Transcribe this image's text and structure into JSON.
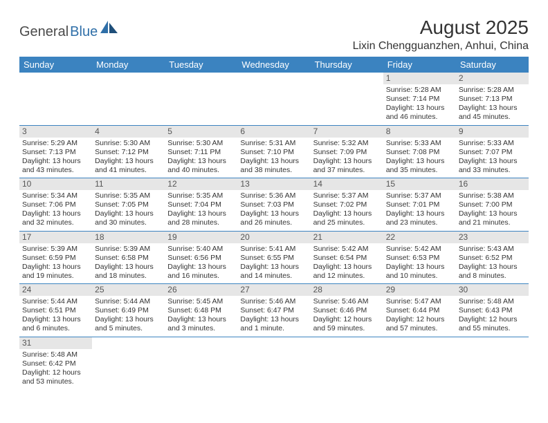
{
  "logo": {
    "part1": "General",
    "part2": "Blue"
  },
  "title": "August 2025",
  "location": "Lixin Chengguanzhen, Anhui, China",
  "colors": {
    "header_bg": "#3b83c0",
    "header_fg": "#ffffff",
    "daynum_bg": "#e6e6e6",
    "border": "#3b83c0",
    "logo_accent": "#2f6fa8"
  },
  "weekdays": [
    "Sunday",
    "Monday",
    "Tuesday",
    "Wednesday",
    "Thursday",
    "Friday",
    "Saturday"
  ],
  "weeks": [
    [
      {
        "empty": true
      },
      {
        "empty": true
      },
      {
        "empty": true
      },
      {
        "empty": true
      },
      {
        "empty": true
      },
      {
        "day": "1",
        "sunrise": "Sunrise: 5:28 AM",
        "sunset": "Sunset: 7:14 PM",
        "daylight1": "Daylight: 13 hours",
        "daylight2": "and 46 minutes."
      },
      {
        "day": "2",
        "sunrise": "Sunrise: 5:28 AM",
        "sunset": "Sunset: 7:13 PM",
        "daylight1": "Daylight: 13 hours",
        "daylight2": "and 45 minutes."
      }
    ],
    [
      {
        "day": "3",
        "sunrise": "Sunrise: 5:29 AM",
        "sunset": "Sunset: 7:13 PM",
        "daylight1": "Daylight: 13 hours",
        "daylight2": "and 43 minutes."
      },
      {
        "day": "4",
        "sunrise": "Sunrise: 5:30 AM",
        "sunset": "Sunset: 7:12 PM",
        "daylight1": "Daylight: 13 hours",
        "daylight2": "and 41 minutes."
      },
      {
        "day": "5",
        "sunrise": "Sunrise: 5:30 AM",
        "sunset": "Sunset: 7:11 PM",
        "daylight1": "Daylight: 13 hours",
        "daylight2": "and 40 minutes."
      },
      {
        "day": "6",
        "sunrise": "Sunrise: 5:31 AM",
        "sunset": "Sunset: 7:10 PM",
        "daylight1": "Daylight: 13 hours",
        "daylight2": "and 38 minutes."
      },
      {
        "day": "7",
        "sunrise": "Sunrise: 5:32 AM",
        "sunset": "Sunset: 7:09 PM",
        "daylight1": "Daylight: 13 hours",
        "daylight2": "and 37 minutes."
      },
      {
        "day": "8",
        "sunrise": "Sunrise: 5:33 AM",
        "sunset": "Sunset: 7:08 PM",
        "daylight1": "Daylight: 13 hours",
        "daylight2": "and 35 minutes."
      },
      {
        "day": "9",
        "sunrise": "Sunrise: 5:33 AM",
        "sunset": "Sunset: 7:07 PM",
        "daylight1": "Daylight: 13 hours",
        "daylight2": "and 33 minutes."
      }
    ],
    [
      {
        "day": "10",
        "sunrise": "Sunrise: 5:34 AM",
        "sunset": "Sunset: 7:06 PM",
        "daylight1": "Daylight: 13 hours",
        "daylight2": "and 32 minutes."
      },
      {
        "day": "11",
        "sunrise": "Sunrise: 5:35 AM",
        "sunset": "Sunset: 7:05 PM",
        "daylight1": "Daylight: 13 hours",
        "daylight2": "and 30 minutes."
      },
      {
        "day": "12",
        "sunrise": "Sunrise: 5:35 AM",
        "sunset": "Sunset: 7:04 PM",
        "daylight1": "Daylight: 13 hours",
        "daylight2": "and 28 minutes."
      },
      {
        "day": "13",
        "sunrise": "Sunrise: 5:36 AM",
        "sunset": "Sunset: 7:03 PM",
        "daylight1": "Daylight: 13 hours",
        "daylight2": "and 26 minutes."
      },
      {
        "day": "14",
        "sunrise": "Sunrise: 5:37 AM",
        "sunset": "Sunset: 7:02 PM",
        "daylight1": "Daylight: 13 hours",
        "daylight2": "and 25 minutes."
      },
      {
        "day": "15",
        "sunrise": "Sunrise: 5:37 AM",
        "sunset": "Sunset: 7:01 PM",
        "daylight1": "Daylight: 13 hours",
        "daylight2": "and 23 minutes."
      },
      {
        "day": "16",
        "sunrise": "Sunrise: 5:38 AM",
        "sunset": "Sunset: 7:00 PM",
        "daylight1": "Daylight: 13 hours",
        "daylight2": "and 21 minutes."
      }
    ],
    [
      {
        "day": "17",
        "sunrise": "Sunrise: 5:39 AM",
        "sunset": "Sunset: 6:59 PM",
        "daylight1": "Daylight: 13 hours",
        "daylight2": "and 19 minutes."
      },
      {
        "day": "18",
        "sunrise": "Sunrise: 5:39 AM",
        "sunset": "Sunset: 6:58 PM",
        "daylight1": "Daylight: 13 hours",
        "daylight2": "and 18 minutes."
      },
      {
        "day": "19",
        "sunrise": "Sunrise: 5:40 AM",
        "sunset": "Sunset: 6:56 PM",
        "daylight1": "Daylight: 13 hours",
        "daylight2": "and 16 minutes."
      },
      {
        "day": "20",
        "sunrise": "Sunrise: 5:41 AM",
        "sunset": "Sunset: 6:55 PM",
        "daylight1": "Daylight: 13 hours",
        "daylight2": "and 14 minutes."
      },
      {
        "day": "21",
        "sunrise": "Sunrise: 5:42 AM",
        "sunset": "Sunset: 6:54 PM",
        "daylight1": "Daylight: 13 hours",
        "daylight2": "and 12 minutes."
      },
      {
        "day": "22",
        "sunrise": "Sunrise: 5:42 AM",
        "sunset": "Sunset: 6:53 PM",
        "daylight1": "Daylight: 13 hours",
        "daylight2": "and 10 minutes."
      },
      {
        "day": "23",
        "sunrise": "Sunrise: 5:43 AM",
        "sunset": "Sunset: 6:52 PM",
        "daylight1": "Daylight: 13 hours",
        "daylight2": "and 8 minutes."
      }
    ],
    [
      {
        "day": "24",
        "sunrise": "Sunrise: 5:44 AM",
        "sunset": "Sunset: 6:51 PM",
        "daylight1": "Daylight: 13 hours",
        "daylight2": "and 6 minutes."
      },
      {
        "day": "25",
        "sunrise": "Sunrise: 5:44 AM",
        "sunset": "Sunset: 6:49 PM",
        "daylight1": "Daylight: 13 hours",
        "daylight2": "and 5 minutes."
      },
      {
        "day": "26",
        "sunrise": "Sunrise: 5:45 AM",
        "sunset": "Sunset: 6:48 PM",
        "daylight1": "Daylight: 13 hours",
        "daylight2": "and 3 minutes."
      },
      {
        "day": "27",
        "sunrise": "Sunrise: 5:46 AM",
        "sunset": "Sunset: 6:47 PM",
        "daylight1": "Daylight: 13 hours",
        "daylight2": "and 1 minute."
      },
      {
        "day": "28",
        "sunrise": "Sunrise: 5:46 AM",
        "sunset": "Sunset: 6:46 PM",
        "daylight1": "Daylight: 12 hours",
        "daylight2": "and 59 minutes."
      },
      {
        "day": "29",
        "sunrise": "Sunrise: 5:47 AM",
        "sunset": "Sunset: 6:44 PM",
        "daylight1": "Daylight: 12 hours",
        "daylight2": "and 57 minutes."
      },
      {
        "day": "30",
        "sunrise": "Sunrise: 5:48 AM",
        "sunset": "Sunset: 6:43 PM",
        "daylight1": "Daylight: 12 hours",
        "daylight2": "and 55 minutes."
      }
    ],
    [
      {
        "day": "31",
        "sunrise": "Sunrise: 5:48 AM",
        "sunset": "Sunset: 6:42 PM",
        "daylight1": "Daylight: 12 hours",
        "daylight2": "and 53 minutes."
      },
      {
        "empty": true
      },
      {
        "empty": true
      },
      {
        "empty": true
      },
      {
        "empty": true
      },
      {
        "empty": true
      },
      {
        "empty": true
      }
    ]
  ]
}
